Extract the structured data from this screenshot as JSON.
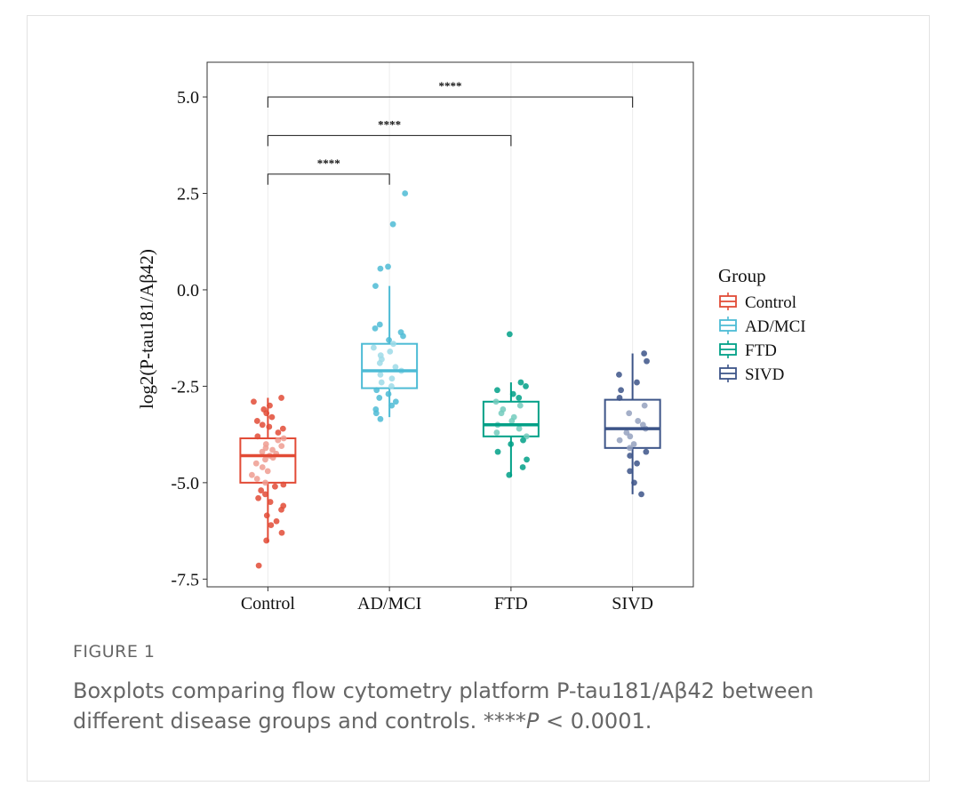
{
  "chart_data": {
    "type": "boxplot",
    "ylabel": "log2(P-tau181/Aβ42)",
    "xlabel": "",
    "ylim": [
      -7.7,
      5.9
    ],
    "yticks": [
      5.0,
      2.5,
      0.0,
      -2.5,
      -5.0,
      -7.5
    ],
    "ytick_labels": [
      "5.0",
      "2.5",
      "0.0",
      "-2.5",
      "-5.0",
      "-7.5"
    ],
    "categories": [
      "Control",
      "AD/MCI",
      "FTD",
      "SIVD"
    ],
    "legend": {
      "title": "Group",
      "position": "right",
      "entries": [
        "Control",
        "AD/MCI",
        "FTD",
        "SIVD"
      ]
    },
    "colors": {
      "Control": "#E24B36",
      "AD/MCI": "#4DBBD5",
      "FTD": "#00A087",
      "SIVD": "#3C5488"
    },
    "series": [
      {
        "name": "Control",
        "whisker_low": -6.55,
        "q1": -5.0,
        "median": -4.3,
        "q3": -3.85,
        "whisker_high": -2.8,
        "points": [
          -2.8,
          -2.9,
          -3.0,
          -3.1,
          -3.2,
          -3.3,
          -3.4,
          -3.5,
          -3.55,
          -3.6,
          -3.7,
          -3.8,
          -3.85,
          -3.9,
          -4.0,
          -4.05,
          -4.1,
          -4.15,
          -4.2,
          -4.25,
          -4.3,
          -4.35,
          -4.4,
          -4.5,
          -4.6,
          -4.7,
          -4.8,
          -4.9,
          -5.0,
          -5.05,
          -5.1,
          -5.2,
          -5.3,
          -5.4,
          -5.5,
          -5.6,
          -5.7,
          -5.85,
          -6.0,
          -6.1,
          -6.3,
          -6.5,
          -7.15
        ]
      },
      {
        "name": "AD/MCI",
        "whisker_low": -3.3,
        "q1": -2.55,
        "median": -2.1,
        "q3": -1.4,
        "whisker_high": 0.1,
        "points": [
          2.5,
          1.7,
          0.6,
          0.55,
          0.1,
          -0.9,
          -1.0,
          -1.1,
          -1.2,
          -1.3,
          -1.4,
          -1.5,
          -1.6,
          -1.7,
          -1.8,
          -1.9,
          -2.0,
          -2.1,
          -2.2,
          -2.3,
          -2.4,
          -2.5,
          -2.6,
          -2.7,
          -2.8,
          -2.9,
          -3.0,
          -3.1,
          -3.2,
          -3.35
        ]
      },
      {
        "name": "FTD",
        "whisker_low": -4.85,
        "q1": -3.8,
        "median": -3.5,
        "q3": -2.9,
        "whisker_high": -2.4,
        "points": [
          -1.15,
          -2.4,
          -2.5,
          -2.6,
          -2.7,
          -2.8,
          -2.9,
          -3.0,
          -3.1,
          -3.2,
          -3.3,
          -3.4,
          -3.5,
          -3.6,
          -3.7,
          -3.8,
          -3.9,
          -4.0,
          -4.2,
          -4.4,
          -4.6,
          -4.8
        ]
      },
      {
        "name": "SIVD",
        "whisker_low": -5.3,
        "q1": -4.1,
        "median": -3.6,
        "q3": -2.85,
        "whisker_high": -1.65,
        "points": [
          -1.65,
          -1.85,
          -2.2,
          -2.4,
          -2.6,
          -2.8,
          -3.0,
          -3.2,
          -3.4,
          -3.5,
          -3.6,
          -3.7,
          -3.8,
          -3.9,
          -4.0,
          -4.1,
          -4.2,
          -4.3,
          -4.5,
          -4.7,
          -5.0,
          -5.3
        ]
      }
    ],
    "comparisons": [
      {
        "from": "Control",
        "to": "AD/MCI",
        "label": "****",
        "y": 3.0
      },
      {
        "from": "Control",
        "to": "FTD",
        "label": "****",
        "y": 4.0
      },
      {
        "from": "Control",
        "to": "SIVD",
        "label": "****",
        "y": 5.0
      }
    ]
  },
  "figure": {
    "label": "FIGURE 1",
    "caption_main": "Boxplots comparing flow cytometry platform P-tau181/Aβ42 between different disease groups and controls. ****",
    "caption_p": "P",
    "caption_tail": " < 0.0001."
  }
}
